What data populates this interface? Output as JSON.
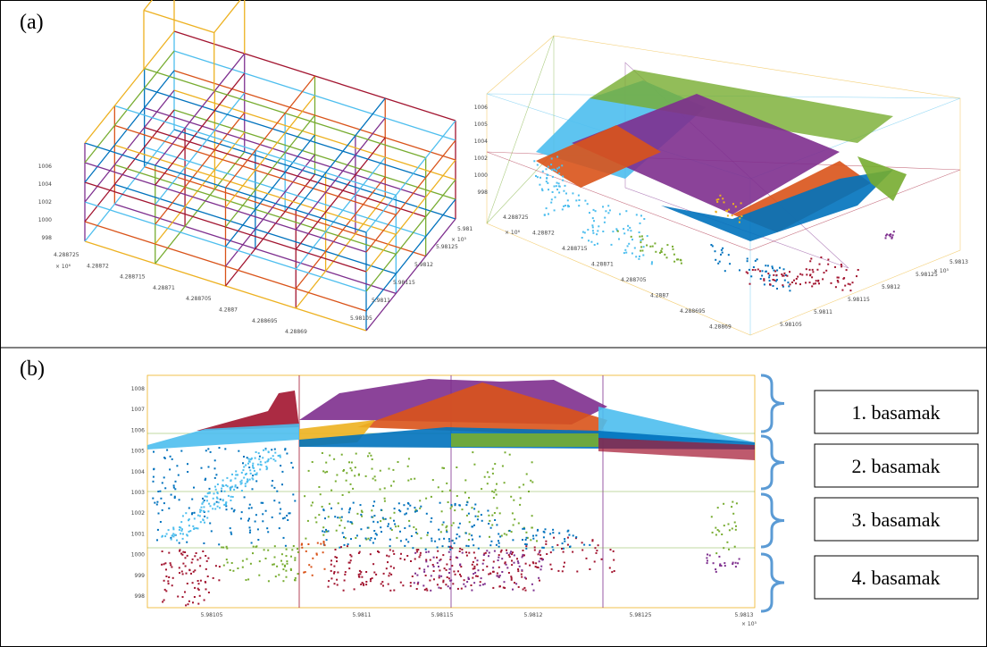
{
  "panel_a": {
    "label": "(a)",
    "left_plot": {
      "z_ticks": [
        "998",
        "1000",
        "1002",
        "1004",
        "1006"
      ],
      "x_ticks": [
        "4.288725",
        "4.28872",
        "4.288715",
        "4.28871",
        "4.288705",
        "4.2887",
        "4.288695",
        "4.28869"
      ],
      "x_exponent": "× 10⁶",
      "y_ticks": [
        "5.981",
        "5.98125",
        "5.9812",
        "5.98115",
        "5.9811",
        "5.98105"
      ],
      "y_exponent": "× 10⁵"
    },
    "right_plot": {
      "z_ticks": [
        "1006",
        "1005",
        "1004",
        "1002",
        "1000",
        "998"
      ],
      "x_ticks": [
        "4.288725",
        "4.28872",
        "4.288715",
        "4.28871",
        "4.288705",
        "4.2887",
        "4.288695",
        "4.28869"
      ],
      "x_exponent": "× 10⁶",
      "y_ticks": [
        "5.9813",
        "5.98125",
        "5.9812",
        "5.98115",
        "5.9811",
        "5.98105"
      ],
      "y_exponent": "× 10⁵"
    }
  },
  "panel_b": {
    "label": "(b)",
    "y_ticks": [
      "1008",
      "1007",
      "1006",
      "1005",
      "1004",
      "1003",
      "1002",
      "1001",
      "1000",
      "999",
      "998"
    ],
    "x_ticks": [
      "5.98105",
      "5.9811",
      "5.98115",
      "5.9812",
      "5.98125",
      "5.9813"
    ],
    "x_exponent": "× 10⁵",
    "steps": [
      "1. basamak",
      "2. basamak",
      "3. basamak",
      "4. basamak"
    ]
  }
}
